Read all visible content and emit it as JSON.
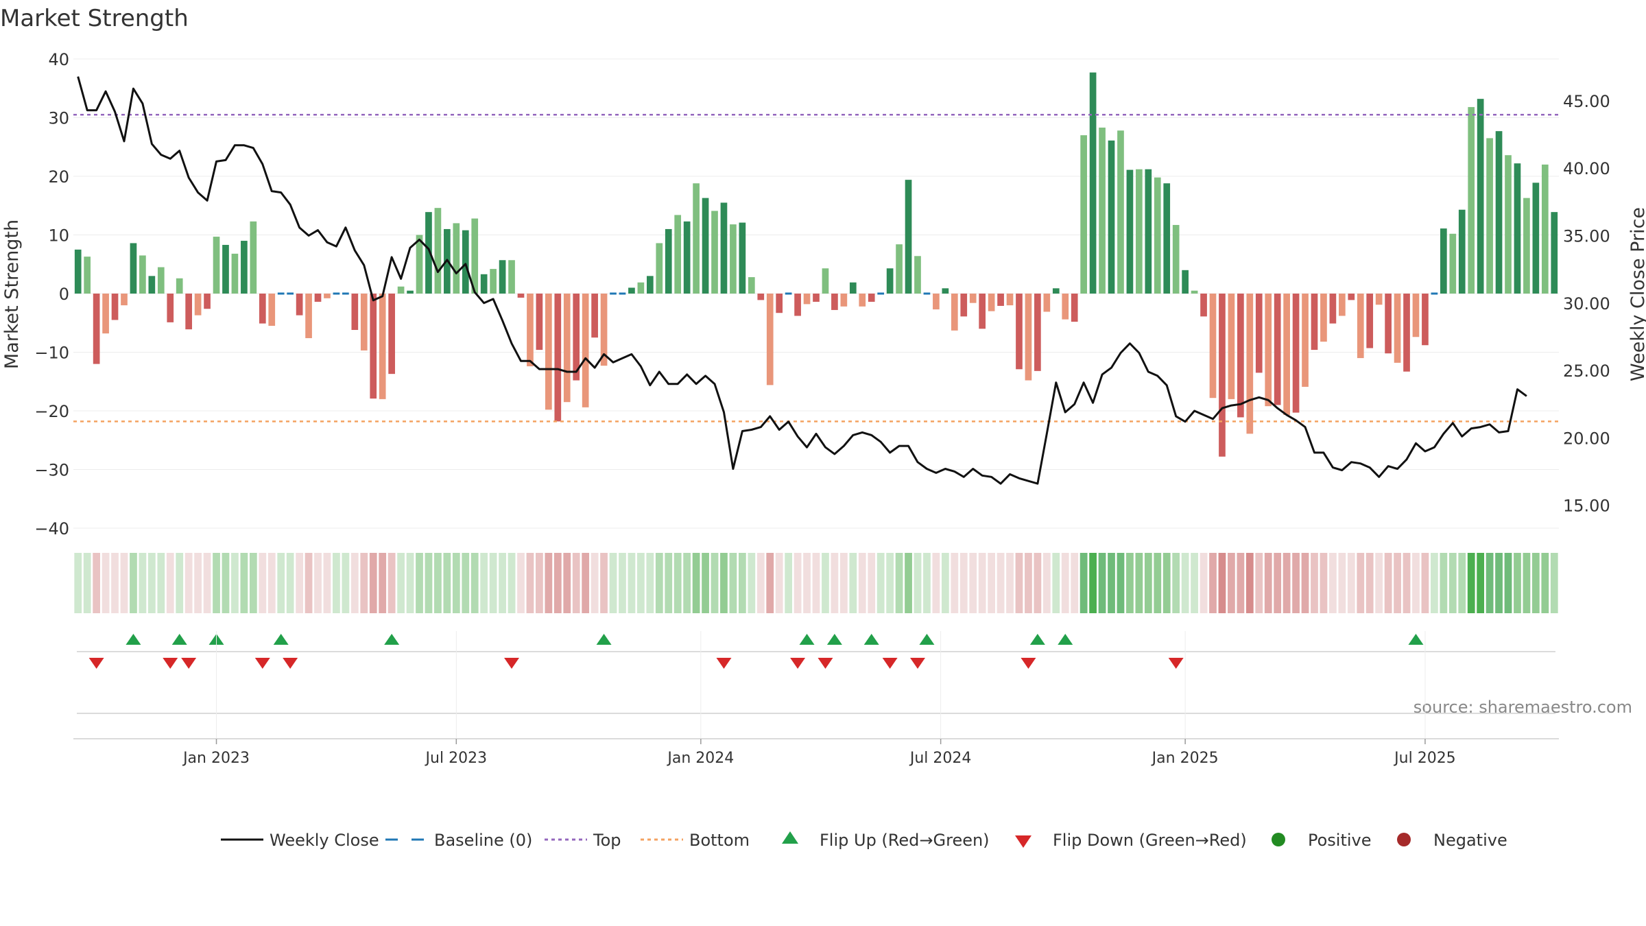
{
  "chart_data": {
    "type": "bar",
    "title": "Market Strength",
    "ylabel_left": "Market Strength",
    "ylabel_right": "Weekly Close Price",
    "source": "source: sharemaestro.com",
    "ylim_left": [
      -40,
      40
    ],
    "ylim_right": [
      13.3,
      48.1
    ],
    "yticks_left": [
      40,
      30,
      20,
      10,
      0,
      -10,
      -20,
      -30,
      -40
    ],
    "yticks_left_labels": [
      "40",
      "30",
      "20",
      "10",
      "0",
      "−10",
      "−20",
      "−30",
      "−40"
    ],
    "yticks_right": [
      45,
      40,
      35,
      30,
      25,
      20,
      15
    ],
    "yticks_right_labels": [
      "45.00",
      "40.00",
      "35.00",
      "30.00",
      "25.00",
      "20.00",
      "15.00"
    ],
    "x_ticks": [
      {
        "label": "Jan 2023",
        "week": 15
      },
      {
        "label": "Jul 2023",
        "week": 41
      },
      {
        "label": "Jan 2024",
        "week": 67.5
      },
      {
        "label": "Jul 2024",
        "week": 93.5
      },
      {
        "label": "Jan 2025",
        "week": 120
      },
      {
        "label": "Jul 2025",
        "week": 146
      }
    ],
    "top_line": 30.5,
    "bottom_line": -21.8,
    "strength": [
      7.5,
      6.3,
      -12,
      -6.8,
      -4.5,
      -2,
      8.6,
      6.5,
      3,
      4.5,
      -4.9,
      2.6,
      -6.1,
      -3.7,
      -2.6,
      9.7,
      8.3,
      6.8,
      9,
      12.3,
      -5.1,
      -5.5,
      0,
      0,
      -3.7,
      -7.6,
      -1.4,
      -0.8,
      0,
      0,
      -6.2,
      -9.7,
      -17.9,
      -18,
      -13.7,
      1.2,
      0.5,
      10,
      13.9,
      14.6,
      11,
      12,
      10.8,
      12.8,
      3.3,
      4.2,
      5.7,
      5.7,
      -0.7,
      -12.4,
      -9.6,
      -19.8,
      -21.8,
      -18.5,
      -14.8,
      -19.4,
      -7.5,
      -12.3,
      0,
      0,
      1,
      1.9,
      3,
      8.6,
      11,
      13.4,
      12.3,
      18.8,
      16.3,
      14.1,
      15.5,
      11.8,
      12.1,
      2.8,
      -1.1,
      -15.6,
      -3.3,
      0,
      -3.8,
      -1.8,
      -1.4,
      4.3,
      -2.8,
      -2.2,
      1.9,
      -2.2,
      -1.4,
      0,
      4.3,
      8.4,
      19.4,
      6.4,
      0,
      -2.7,
      0.9,
      -6.3,
      -3.9,
      -1.6,
      -6,
      -3,
      -2.1,
      -2,
      -12.9,
      -14.8,
      -13.2,
      -3.1,
      0.9,
      -4.4,
      -4.8,
      27,
      37.7,
      28.3,
      26.1,
      27.8,
      21.1,
      21.2,
      21.2,
      19.8,
      18.8,
      11.7,
      4,
      0.5,
      -3.9,
      -17.8,
      -27.8,
      -18,
      -21.1,
      -23.9,
      -13.5,
      -19.2,
      -19,
      -20.7,
      -20.3,
      -15.9,
      -9.6,
      -8.2,
      -5.1,
      -3.8,
      -1.1,
      -11,
      -9.3,
      -1.9,
      -10.2,
      -11.8,
      -13.3,
      -7.4,
      -8.8,
      0,
      11.1,
      10.2,
      14.3,
      31.8,
      33.2,
      26.5,
      27.7,
      23.6,
      22.2,
      16.3,
      18.9,
      22,
      13.9
    ],
    "weekly_close": [
      46.8,
      44.3,
      44.3,
      45.7,
      44.2,
      42,
      45.9,
      44.8,
      41.8,
      41,
      40.7,
      41.3,
      39.3,
      38.2,
      37.6,
      40.5,
      40.6,
      41.7,
      41.7,
      41.5,
      40.3,
      38.3,
      38.2,
      37.3,
      35.6,
      35,
      35.4,
      34.5,
      34.2,
      35.6,
      33.9,
      32.8,
      30.2,
      30.5,
      33.4,
      31.8,
      34.1,
      34.7,
      34,
      32.3,
      33.2,
      32.2,
      32.9,
      30.8,
      30,
      30.3,
      28.7,
      27,
      25.7,
      25.7,
      25.1,
      25.1,
      25.1,
      24.9,
      24.9,
      25.9,
      25.2,
      26.2,
      25.6,
      25.9,
      26.2,
      25.3,
      23.9,
      24.9,
      24,
      24,
      24.7,
      24,
      24.6,
      24,
      21.9,
      17.7,
      20.5,
      20.6,
      20.8,
      21.6,
      20.6,
      21.2,
      20.1,
      19.3,
      20.3,
      19.3,
      18.8,
      19.4,
      20.2,
      20.4,
      20.2,
      19.7,
      18.9,
      19.4,
      19.4,
      18.2,
      17.7,
      17.4,
      17.7,
      17.5,
      17.1,
      17.7,
      17.2,
      17.1,
      16.6,
      17.3,
      17,
      16.8,
      16.6,
      20.3,
      24.1,
      21.9,
      22.5,
      24.1,
      22.6,
      24.7,
      25.2,
      26.3,
      27,
      26.3,
      24.9,
      24.6,
      23.9,
      21.6,
      21.2,
      22,
      21.7,
      21.4,
      22.2,
      22.4,
      22.5,
      22.8,
      23,
      22.8,
      22.2,
      21.7,
      21.3,
      20.8,
      18.9,
      18.9,
      17.8,
      17.6,
      18.2,
      18.1,
      17.8,
      17.1,
      17.9,
      17.7,
      18.4,
      19.6,
      19,
      19.3,
      20.3,
      21.1,
      20.1,
      20.7,
      20.8,
      21,
      20.4,
      20.5,
      23.6,
      23.1
    ],
    "flips_up_weeks": [
      6,
      11,
      15,
      22,
      34,
      57,
      79,
      82,
      86,
      92,
      104,
      107,
      145
    ],
    "flips_down_weeks": [
      2,
      10,
      12,
      20,
      23,
      47,
      70,
      78,
      81,
      88,
      91,
      103,
      119
    ],
    "legend": [
      {
        "label": "Weekly Close",
        "kind": "line",
        "color": "#111111"
      },
      {
        "label": "Baseline (0)",
        "kind": "dash",
        "color": "#1f77b4"
      },
      {
        "label": "Top",
        "kind": "dot",
        "color": "#9467bd"
      },
      {
        "label": "Bottom",
        "kind": "dot",
        "color": "#f4a261"
      },
      {
        "label": "Flip Up (Red→Green)",
        "kind": "tri-up",
        "color": "#22a04a"
      },
      {
        "label": "Flip Down (Green→Red)",
        "kind": "tri-down",
        "color": "#d62728"
      },
      {
        "label": "Positive",
        "kind": "circle",
        "color": "#228b22"
      },
      {
        "label": "Negative",
        "kind": "circle",
        "color": "#a52a2a"
      }
    ]
  },
  "colors": {
    "pos_strong": "#2e8b57",
    "pos_weak": "#7fbf7f",
    "neg_strong": "#cd5c5c",
    "neg_weak": "#e9967a",
    "baseline": "#1f77b4"
  }
}
